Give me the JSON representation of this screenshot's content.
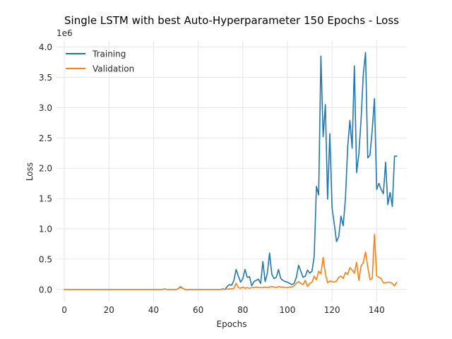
{
  "chart_data": {
    "type": "line",
    "title": "Single LSTM with best Auto-Hyperparameter 150 Epochs - Loss",
    "xlabel": "Epochs",
    "ylabel": "Loss",
    "y_offset_label": "1e6",
    "xlim": [
      -3.5,
      153.5
    ],
    "ylim": [
      -0.2,
      4.1
    ],
    "xticks": [
      0,
      20,
      40,
      60,
      80,
      100,
      120,
      140
    ],
    "yticks": [
      0.0,
      0.5,
      1.0,
      1.5,
      2.0,
      2.5,
      3.0,
      3.5,
      4.0
    ],
    "y_scale": 1000000,
    "grid": true,
    "legend_position": "upper-left",
    "series": [
      {
        "name": "Training",
        "color": "#1f77b4",
        "x": [
          0,
          43,
          44,
          45,
          46,
          50,
          51,
          52,
          53,
          54,
          55,
          70,
          71,
          72,
          73,
          74,
          75,
          76,
          77,
          78,
          79,
          80,
          81,
          82,
          83,
          84,
          85,
          86,
          87,
          88,
          89,
          90,
          91,
          92,
          93,
          94,
          95,
          96,
          97,
          98,
          99,
          100,
          101,
          102,
          103,
          104,
          105,
          106,
          107,
          108,
          109,
          110,
          111,
          112,
          113,
          114,
          115,
          116,
          117,
          118,
          119,
          120,
          121,
          122,
          123,
          124,
          125,
          126,
          127,
          128,
          129,
          130,
          131,
          132,
          133,
          134,
          135,
          136,
          137,
          138,
          139,
          140,
          141,
          142,
          143,
          144,
          145,
          146,
          147,
          148,
          149
        ],
        "y": [
          0.0,
          0.0,
          0.0,
          0.01,
          0.0,
          0.0,
          0.01,
          0.04,
          0.02,
          0.0,
          0.0,
          0.0,
          0.01,
          0.0,
          0.05,
          0.08,
          0.07,
          0.15,
          0.33,
          0.22,
          0.12,
          0.18,
          0.33,
          0.2,
          0.21,
          0.06,
          0.13,
          0.15,
          0.17,
          0.1,
          0.46,
          0.13,
          0.27,
          0.6,
          0.25,
          0.18,
          0.2,
          0.33,
          0.18,
          0.15,
          0.13,
          0.12,
          0.1,
          0.08,
          0.1,
          0.2,
          0.4,
          0.3,
          0.2,
          0.22,
          0.32,
          0.27,
          0.3,
          0.55,
          1.7,
          1.56,
          3.85,
          2.52,
          3.05,
          1.49,
          2.57,
          1.35,
          1.08,
          0.79,
          0.87,
          1.21,
          1.05,
          1.5,
          2.35,
          2.79,
          2.33,
          3.69,
          1.93,
          2.23,
          2.8,
          3.55,
          3.91,
          2.17,
          2.22,
          2.63,
          3.15,
          1.65,
          1.75,
          1.65,
          1.58,
          2.1,
          1.4,
          1.6,
          1.37,
          2.2,
          2.2
        ]
      },
      {
        "name": "Validation",
        "color": "#ff7f0e",
        "x": [
          0,
          43,
          44,
          45,
          46,
          50,
          51,
          52,
          53,
          54,
          55,
          70,
          75,
          76,
          77,
          78,
          79,
          80,
          81,
          82,
          83,
          84,
          85,
          86,
          87,
          88,
          89,
          90,
          91,
          92,
          93,
          94,
          95,
          96,
          97,
          98,
          99,
          100,
          101,
          102,
          103,
          104,
          105,
          106,
          107,
          108,
          109,
          110,
          111,
          112,
          113,
          114,
          115,
          116,
          117,
          118,
          119,
          120,
          121,
          122,
          123,
          124,
          125,
          126,
          127,
          128,
          129,
          130,
          131,
          132,
          133,
          134,
          135,
          136,
          137,
          138,
          139,
          140,
          141,
          142,
          143,
          144,
          145,
          146,
          147,
          148,
          149
        ],
        "y": [
          0.0,
          0.0,
          0.0,
          0.01,
          0.0,
          0.0,
          0.01,
          0.05,
          0.02,
          0.0,
          0.0,
          0.0,
          0.01,
          0.02,
          0.1,
          0.03,
          0.02,
          0.04,
          0.02,
          0.03,
          0.02,
          0.03,
          0.03,
          0.04,
          0.03,
          0.03,
          0.03,
          0.04,
          0.03,
          0.04,
          0.05,
          0.04,
          0.03,
          0.05,
          0.04,
          0.04,
          0.03,
          0.03,
          0.04,
          0.04,
          0.06,
          0.1,
          0.13,
          0.1,
          0.08,
          0.15,
          0.05,
          0.1,
          0.12,
          0.22,
          0.16,
          0.3,
          0.26,
          0.53,
          0.26,
          0.11,
          0.14,
          0.13,
          0.12,
          0.14,
          0.2,
          0.22,
          0.18,
          0.28,
          0.25,
          0.36,
          0.32,
          0.27,
          0.45,
          0.15,
          0.39,
          0.44,
          0.62,
          0.37,
          0.16,
          0.18,
          0.91,
          0.22,
          0.2,
          0.18,
          0.11,
          0.11,
          0.12,
          0.12,
          0.1,
          0.06,
          0.12
        ]
      }
    ]
  }
}
